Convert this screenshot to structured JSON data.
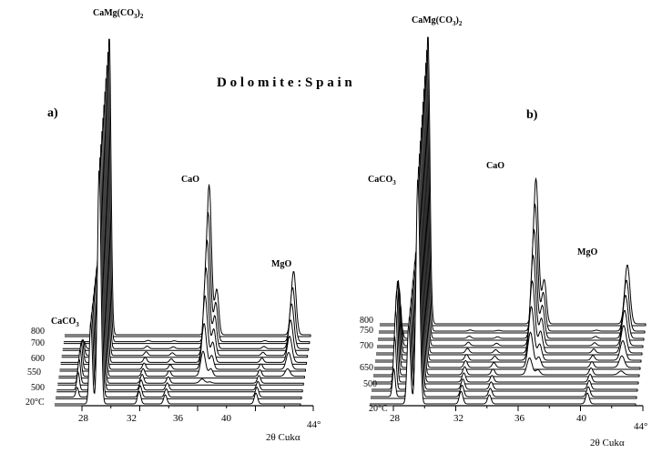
{
  "figure": {
    "title": "D o l o m i t e :   S p a i n",
    "panels": [
      {
        "label": "a)",
        "axis_label": "2θ  Cukα",
        "x_ticks": [
          "28",
          "32",
          "36",
          "40",
          "44°"
        ],
        "temperatures": [
          "20°C",
          "500",
          "550",
          "600",
          "700",
          "800"
        ],
        "peak_labels": [
          "CaMg(CO3)2",
          "CaO",
          "MgO",
          "CaCO3"
        ]
      },
      {
        "label": "b)",
        "axis_label": "2θ  Cukα",
        "x_ticks": [
          "28",
          "32",
          "36",
          "40",
          "44°"
        ],
        "temperatures": [
          "20°C",
          "500",
          "650",
          "700",
          "750",
          "800"
        ],
        "peak_labels": [
          "CaMg(CO3)2",
          "CaO",
          "MgO",
          "CaCO3"
        ]
      }
    ]
  },
  "chart_data": [
    {
      "type": "line",
      "title": "Dolomite: Spain",
      "panel": "a)",
      "xlabel": "2θ Cukα",
      "ylabel": "",
      "xlim": [
        28,
        44
      ],
      "x_unit": "degrees 2θ",
      "y_scale": "relative intensity (arbitrary units)",
      "traces": 11,
      "temperature_labels": [
        "20°C",
        "500",
        "550",
        "600",
        "700",
        "800"
      ],
      "phases": [
        {
          "label": "CaCO3",
          "two_theta": 29.4
        },
        {
          "label": "CaMg(CO3)2",
          "two_theta": 30.9
        },
        {
          "label": "CaO",
          "two_theta": 37.4
        },
        {
          "label": "MgO",
          "two_theta": 42.9
        }
      ]
    },
    {
      "type": "line",
      "title": "Dolomite: Spain",
      "panel": "b)",
      "xlabel": "2θ Cukα",
      "ylabel": "",
      "xlim": [
        28,
        44
      ],
      "x_unit": "degrees 2θ",
      "y_scale": "relative intensity (arbitrary units)",
      "traces": 12,
      "temperature_labels": [
        "20°C",
        "500",
        "650",
        "700",
        "750",
        "800"
      ],
      "phases": [
        {
          "label": "CaCO3",
          "two_theta": 29.4
        },
        {
          "label": "CaMg(CO3)2",
          "two_theta": 30.9
        },
        {
          "label": "CaO",
          "two_theta": 37.4
        },
        {
          "label": "MgO",
          "two_theta": 42.9
        }
      ]
    }
  ]
}
